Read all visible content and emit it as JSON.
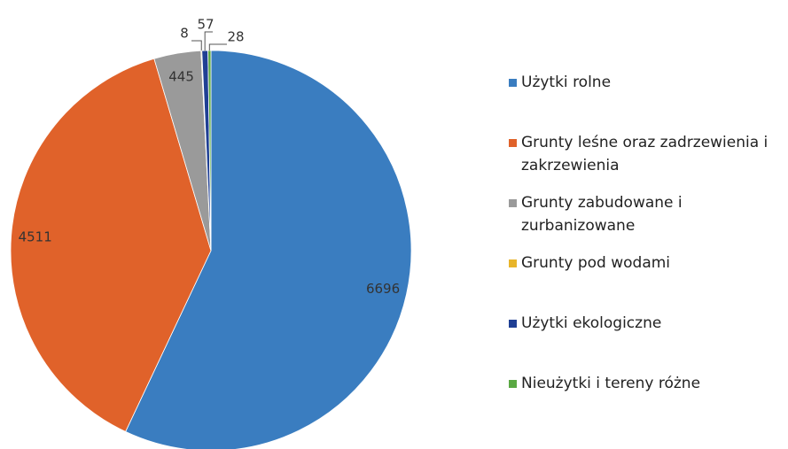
{
  "chart_data": {
    "type": "pie",
    "categories": [
      "Użytki rolne",
      "Grunty leśne oraz zadrzewienia i zakrzewienia",
      "Grunty zabudowane i zurbanizowane",
      "Grunty pod wodami",
      "Użytki ekologiczne",
      "Nieużytki i tereny różne"
    ],
    "values": [
      6696,
      4511,
      445,
      8,
      57,
      28
    ],
    "colors": [
      "#3a7dc0",
      "#e0622a",
      "#9a9a9a",
      "#e8b52a",
      "#1f3f94",
      "#5aa843"
    ],
    "legend": "right"
  }
}
